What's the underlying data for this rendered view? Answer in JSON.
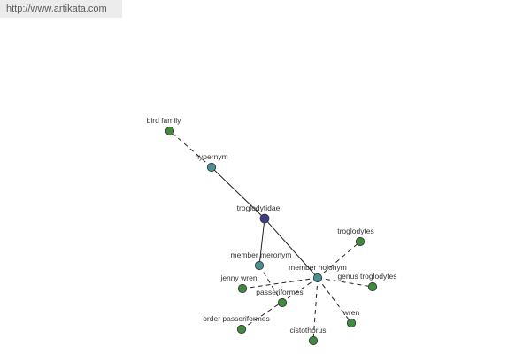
{
  "banner": {
    "url": "http://www.artikata.com"
  },
  "colors": {
    "center": "#3d3d88",
    "relation": "#4a9090",
    "term": "#3f8a3f",
    "edge": "#222222"
  },
  "graph": {
    "nodes": [
      {
        "id": "troglodytidae",
        "label": "troglodytidae",
        "kind": "center"
      },
      {
        "id": "hypernym",
        "label": "hypernym",
        "kind": "relation"
      },
      {
        "id": "member-meronym",
        "label": "member meronym",
        "kind": "relation"
      },
      {
        "id": "member-holonym",
        "label": "member holonym",
        "kind": "relation"
      },
      {
        "id": "bird-family",
        "label": "bird family",
        "kind": "term"
      },
      {
        "id": "jenny-wren",
        "label": "jenny wren",
        "kind": "term"
      },
      {
        "id": "passeriformes",
        "label": "passeriformes",
        "kind": "term"
      },
      {
        "id": "order-passeriformes",
        "label": "order passeriformes",
        "kind": "term"
      },
      {
        "id": "troglodytes",
        "label": "troglodytes",
        "kind": "term"
      },
      {
        "id": "genus-troglodytes",
        "label": "genus troglodytes",
        "kind": "term"
      },
      {
        "id": "wren",
        "label": "wren",
        "kind": "term"
      },
      {
        "id": "cistothorus",
        "label": "cistothorus",
        "kind": "term"
      }
    ],
    "edges": [
      {
        "from": "troglodytidae",
        "to": "hypernym",
        "style": "solid"
      },
      {
        "from": "troglodytidae",
        "to": "member-meronym",
        "style": "solid"
      },
      {
        "from": "troglodytidae",
        "to": "member-holonym",
        "style": "solid"
      },
      {
        "from": "hypernym",
        "to": "bird-family",
        "style": "dashed"
      },
      {
        "from": "member-holonym",
        "to": "jenny-wren",
        "style": "dashed"
      },
      {
        "from": "member-holonym",
        "to": "order-passeriformes",
        "style": "dashed"
      },
      {
        "from": "member-meronym",
        "to": "passeriformes",
        "style": "dashed"
      },
      {
        "from": "member-holonym",
        "to": "troglodytes",
        "style": "dashed"
      },
      {
        "from": "member-holonym",
        "to": "genus-troglodytes",
        "style": "dashed"
      },
      {
        "from": "member-holonym",
        "to": "wren",
        "style": "dashed"
      },
      {
        "from": "member-holonym",
        "to": "cistothorus",
        "style": "dashed"
      }
    ]
  }
}
